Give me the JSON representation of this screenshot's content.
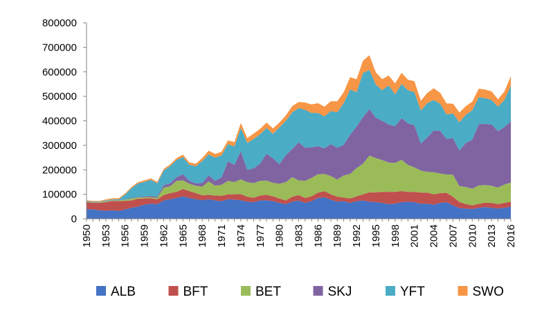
{
  "chart_data": {
    "type": "area",
    "stacked": true,
    "title": "",
    "xlabel": "",
    "ylabel": "",
    "x": [
      1950,
      1951,
      1952,
      1953,
      1954,
      1955,
      1956,
      1957,
      1958,
      1959,
      1960,
      1961,
      1962,
      1963,
      1964,
      1965,
      1966,
      1967,
      1968,
      1969,
      1970,
      1971,
      1972,
      1973,
      1974,
      1975,
      1976,
      1977,
      1978,
      1979,
      1980,
      1981,
      1982,
      1983,
      1984,
      1985,
      1986,
      1987,
      1988,
      1989,
      1990,
      1991,
      1992,
      1993,
      1994,
      1995,
      1996,
      1997,
      1998,
      1999,
      2000,
      2001,
      2002,
      2003,
      2004,
      2005,
      2006,
      2007,
      2008,
      2009,
      2010,
      2011,
      2012,
      2013,
      2014,
      2015,
      2016
    ],
    "x_tick_labels": [
      "1950",
      "1953",
      "1956",
      "1959",
      "1962",
      "1965",
      "1968",
      "1971",
      "1974",
      "1977",
      "1980",
      "1983",
      "1986",
      "1989",
      "1992",
      "1995",
      "1998",
      "2001",
      "2004",
      "2007",
      "2010",
      "2013",
      "2016"
    ],
    "ylim": [
      0,
      800000
    ],
    "y_tick_labels": [
      "0",
      "100000",
      "200000",
      "300000",
      "400000",
      "500000",
      "600000",
      "700000",
      "800000"
    ],
    "legend_position": "bottom",
    "series": [
      {
        "name": "ALB",
        "color": "#4472C4",
        "values": [
          40000,
          38000,
          35000,
          33000,
          35000,
          32000,
          38000,
          45000,
          50000,
          58000,
          62000,
          60000,
          75000,
          80000,
          85000,
          92000,
          85000,
          80000,
          76000,
          80000,
          75000,
          72000,
          80000,
          78000,
          76000,
          70000,
          68000,
          75000,
          76000,
          72000,
          65000,
          60000,
          70000,
          75000,
          65000,
          72000,
          85000,
          88000,
          78000,
          70000,
          72000,
          65000,
          72000,
          75000,
          70000,
          68000,
          65000,
          60000,
          62000,
          68000,
          70000,
          68000,
          62000,
          62000,
          58000,
          65000,
          68000,
          55000,
          44000,
          42000,
          40000,
          45000,
          48000,
          45000,
          42000,
          45000,
          50000
        ]
      },
      {
        "name": "BFT",
        "color": "#C0504D",
        "values": [
          28000,
          27000,
          30000,
          35000,
          38000,
          40000,
          35000,
          30000,
          32000,
          25000,
          22000,
          20000,
          22000,
          25000,
          25000,
          30000,
          28000,
          25000,
          20000,
          18000,
          20000,
          22000,
          20000,
          22000,
          25000,
          20000,
          18000,
          20000,
          22000,
          20000,
          18000,
          15000,
          20000,
          22000,
          20000,
          20000,
          22000,
          25000,
          22000,
          20000,
          15000,
          18000,
          20000,
          25000,
          38000,
          40000,
          45000,
          50000,
          48000,
          45000,
          40000,
          42000,
          45000,
          45000,
          42000,
          40000,
          38000,
          35000,
          25000,
          18000,
          15000,
          16000,
          18000,
          20000,
          18000,
          20000,
          20000
        ]
      },
      {
        "name": "BET",
        "color": "#9BBB59",
        "values": [
          2000,
          2000,
          2000,
          3000,
          3000,
          3000,
          5000,
          8000,
          5000,
          5000,
          5000,
          5000,
          30000,
          28000,
          45000,
          35000,
          30000,
          30000,
          35000,
          55000,
          40000,
          45000,
          55000,
          50000,
          60000,
          60000,
          60000,
          60000,
          58000,
          55000,
          60000,
          75000,
          80000,
          60000,
          70000,
          75000,
          75000,
          70000,
          75000,
          70000,
          90000,
          100000,
          115000,
          125000,
          150000,
          140000,
          130000,
          120000,
          118000,
          128000,
          110000,
          100000,
          90000,
          85000,
          90000,
          80000,
          75000,
          90000,
          65000,
          70000,
          68000,
          75000,
          72000,
          70000,
          68000,
          75000,
          78000
        ]
      },
      {
        "name": "SKJ",
        "color": "#8064A2",
        "values": [
          1000,
          1000,
          1000,
          1000,
          1000,
          1000,
          1000,
          2000,
          2000,
          3000,
          5000,
          5000,
          10000,
          12000,
          15000,
          25000,
          12000,
          10000,
          15000,
          25000,
          20000,
          30000,
          80000,
          70000,
          115000,
          50000,
          60000,
          70000,
          110000,
          100000,
          80000,
          110000,
          115000,
          155000,
          135000,
          125000,
          115000,
          105000,
          130000,
          130000,
          125000,
          160000,
          170000,
          190000,
          190000,
          165000,
          160000,
          155000,
          150000,
          170000,
          170000,
          172000,
          110000,
          140000,
          170000,
          175000,
          145000,
          150000,
          145000,
          180000,
          200000,
          250000,
          250000,
          250000,
          230000,
          235000,
          250000
        ]
      },
      {
        "name": "YFT",
        "color": "#4BACC6",
        "values": [
          2000,
          2000,
          2000,
          3000,
          3000,
          3000,
          20000,
          40000,
          55000,
          60000,
          65000,
          55000,
          60000,
          70000,
          70000,
          70000,
          65000,
          70000,
          90000,
          85000,
          95000,
          90000,
          70000,
          75000,
          95000,
          110000,
          120000,
          120000,
          105000,
          100000,
          150000,
          140000,
          150000,
          140000,
          155000,
          140000,
          135000,
          130000,
          135000,
          145000,
          170000,
          185000,
          140000,
          180000,
          160000,
          135000,
          125000,
          160000,
          130000,
          140000,
          135000,
          135000,
          135000,
          140000,
          125000,
          110000,
          100000,
          100000,
          115000,
          115000,
          120000,
          110000,
          105000,
          100000,
          100000,
          110000,
          145000
        ]
      },
      {
        "name": "SWO",
        "color": "#F79646",
        "values": [
          3000,
          3000,
          3000,
          4000,
          4000,
          5000,
          5000,
          5000,
          6000,
          6000,
          6000,
          6000,
          7000,
          7000,
          8000,
          10000,
          10000,
          10000,
          12000,
          15000,
          15000,
          15000,
          15000,
          18000,
          20000,
          20000,
          22000,
          22000,
          22000,
          22000,
          20000,
          22000,
          25000,
          25000,
          30000,
          35000,
          40000,
          40000,
          40000,
          45000,
          45000,
          50000,
          53000,
          50000,
          60000,
          50000,
          45000,
          40000,
          45000,
          45000,
          43000,
          45000,
          40000,
          42000,
          48000,
          45000,
          45000,
          40000,
          40000,
          35000,
          35000,
          35000,
          35000,
          35000,
          30000,
          35000,
          40000
        ]
      }
    ]
  }
}
